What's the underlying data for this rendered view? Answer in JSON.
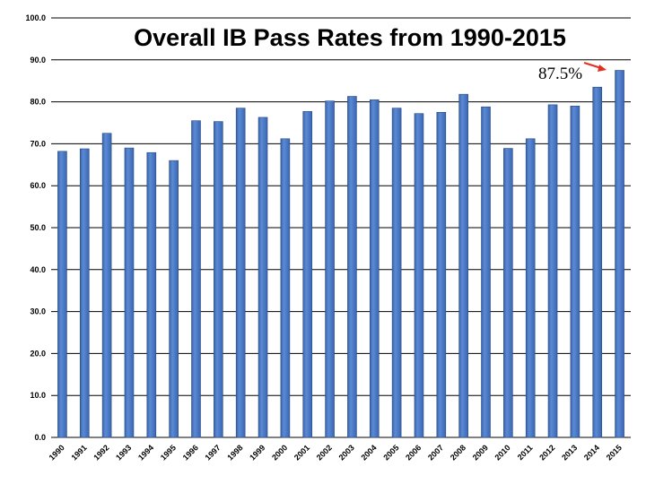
{
  "chart_data": {
    "type": "bar",
    "title": "Overall IB Pass Rates from 1990-2015",
    "xlabel": "",
    "ylabel": "",
    "ylim": [
      0,
      100
    ],
    "yticks": [
      "0.0",
      "10.0",
      "20.0",
      "30.0",
      "40.0",
      "50.0",
      "60.0",
      "70.0",
      "80.0",
      "90.0",
      "100.0"
    ],
    "grid": true,
    "categories": [
      "1990",
      "1991",
      "1992",
      "1993",
      "1994",
      "1995",
      "1996",
      "1997",
      "1998",
      "1999",
      "2000",
      "2001",
      "2002",
      "2003",
      "2004",
      "2005",
      "2006",
      "2007",
      "2008",
      "2009",
      "2010",
      "2011",
      "2012",
      "2013",
      "2014",
      "2015"
    ],
    "values": [
      68.2,
      68.8,
      72.5,
      69.0,
      67.9,
      66.0,
      75.5,
      75.3,
      78.5,
      76.3,
      71.2,
      77.7,
      80.2,
      81.3,
      80.5,
      78.5,
      77.2,
      77.5,
      81.8,
      78.8,
      68.9,
      71.2,
      79.3,
      79.0,
      83.5,
      87.5
    ],
    "bar_color": "#4a7bc8",
    "annotations": [
      {
        "text": "87.5%",
        "target": "2015",
        "arrow_color": "#e03020"
      }
    ]
  }
}
